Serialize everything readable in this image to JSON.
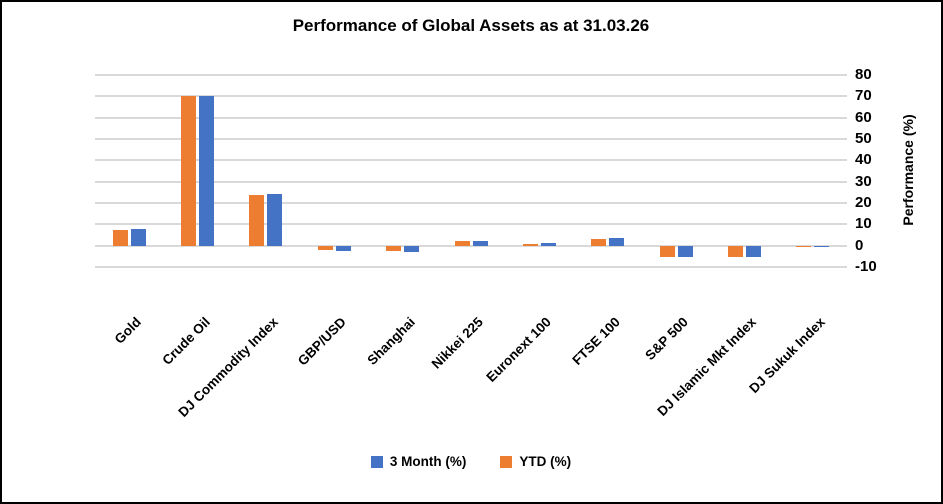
{
  "window": {
    "background_color": "#FFFFFF",
    "border_color": "#000000"
  },
  "chart_data": {
    "type": "bar",
    "title": "Performance of Global Assets as at 31.03.26",
    "xlabel": "",
    "ylabel": "Performance (%)",
    "ylim": [
      -10,
      80
    ],
    "yticks": [
      80,
      70,
      60,
      50,
      40,
      30,
      20,
      10,
      0,
      -10
    ],
    "grid": true,
    "gridline_color": "#D9D9D9",
    "legend_position": "bottom",
    "categories": [
      "Gold",
      "Crude Oil",
      "DJ Commodity Index",
      "GBP/USD",
      "Shanghai",
      "Nikkei 225",
      "Euronext 100",
      "FTSE 100",
      "S&P 500",
      "DJ Islamic Mkt Index",
      "DJ Sukuk Index"
    ],
    "series": [
      {
        "name": "YTD (%)",
        "color": "#ED7D31",
        "values": [
          7.5,
          70,
          23.8,
          -1.9,
          -2.3,
          2.0,
          0.9,
          3.3,
          -5.2,
          -5.2,
          -0.6
        ]
      },
      {
        "name": "3 Month (%)",
        "color": "#4472C4",
        "values": [
          7.7,
          70,
          24.0,
          -2.3,
          -2.8,
          2.3,
          1.1,
          3.6,
          -5.3,
          -5.5,
          -0.8
        ]
      }
    ],
    "legend": [
      {
        "label": "3 Month (%)",
        "color": "#4472C4"
      },
      {
        "label": "YTD (%)",
        "color": "#ED7D31"
      }
    ]
  }
}
